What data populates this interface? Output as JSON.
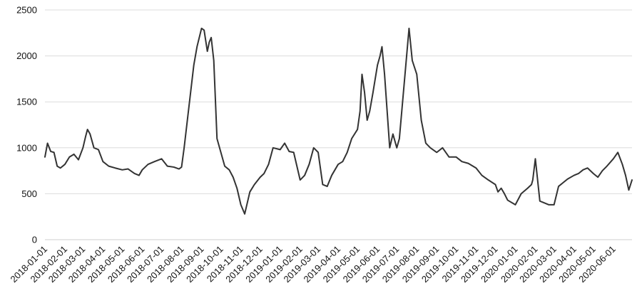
{
  "chart_data": {
    "type": "line",
    "title": "",
    "xlabel": "",
    "ylabel": "",
    "ylim": [
      0,
      2500
    ],
    "yticks": [
      0,
      500,
      1000,
      1500,
      2000,
      2500
    ],
    "ytick_labels": [
      "0",
      "500",
      "1000",
      "1500",
      "2000",
      "2500"
    ],
    "xlim": [
      "2018-01-01",
      "2020-06-30"
    ],
    "xticks": [
      "2018-01-01",
      "2018-02-01",
      "2018-03-01",
      "2018-04-01",
      "2018-05-01",
      "2018-06-01",
      "2018-07-01",
      "2018-08-01",
      "2018-09-01",
      "2018-10-01",
      "2018-11-01",
      "2018-12-01",
      "2019-01-01",
      "2019-02-01",
      "2019-03-01",
      "2019-04-01",
      "2019-05-01",
      "2019-06-01",
      "2019-07-01",
      "2019-08-01",
      "2019-09-01",
      "2019-10-01",
      "2019-11-01",
      "2019-12-01",
      "2020-01-01",
      "2020-02-01",
      "2020-03-01",
      "2020-04-01",
      "2020-05-01",
      "2020-06-01"
    ],
    "grid": {
      "y": true,
      "x": false
    },
    "legend": "none",
    "series": [
      {
        "color": "#333333",
        "x": [
          "2018-01-01",
          "2018-01-05",
          "2018-01-10",
          "2018-01-15",
          "2018-01-20",
          "2018-01-25",
          "2018-02-01",
          "2018-02-08",
          "2018-02-15",
          "2018-02-22",
          "2018-03-01",
          "2018-03-05",
          "2018-03-08",
          "2018-03-12",
          "2018-03-18",
          "2018-03-25",
          "2018-04-01",
          "2018-04-10",
          "2018-04-20",
          "2018-05-01",
          "2018-05-10",
          "2018-05-20",
          "2018-05-27",
          "2018-06-01",
          "2018-06-10",
          "2018-06-20",
          "2018-07-01",
          "2018-07-10",
          "2018-07-20",
          "2018-07-28",
          "2018-08-01",
          "2018-08-05",
          "2018-08-10",
          "2018-08-15",
          "2018-08-20",
          "2018-08-25",
          "2018-09-01",
          "2018-09-05",
          "2018-09-10",
          "2018-09-13",
          "2018-09-16",
          "2018-09-20",
          "2018-09-25",
          "2018-10-01",
          "2018-10-07",
          "2018-10-14",
          "2018-10-20",
          "2018-10-26",
          "2018-11-01",
          "2018-11-07",
          "2018-11-15",
          "2018-11-22",
          "2018-12-01",
          "2018-12-07",
          "2018-12-14",
          "2018-12-21",
          "2019-01-01",
          "2019-01-08",
          "2019-01-15",
          "2019-01-22",
          "2019-02-01",
          "2019-02-08",
          "2019-02-15",
          "2019-02-22",
          "2019-03-01",
          "2019-03-08",
          "2019-03-15",
          "2019-03-22",
          "2019-04-01",
          "2019-04-08",
          "2019-04-15",
          "2019-04-22",
          "2019-05-01",
          "2019-05-05",
          "2019-05-08",
          "2019-05-12",
          "2019-05-16",
          "2019-05-20",
          "2019-05-25",
          "2019-06-01",
          "2019-06-05",
          "2019-06-08",
          "2019-06-12",
          "2019-06-16",
          "2019-06-20",
          "2019-06-25",
          "2019-07-01",
          "2019-07-05",
          "2019-07-10",
          "2019-07-15",
          "2019-07-20",
          "2019-07-25",
          "2019-08-01",
          "2019-08-08",
          "2019-08-15",
          "2019-08-22",
          "2019-09-01",
          "2019-09-10",
          "2019-09-20",
          "2019-10-01",
          "2019-10-10",
          "2019-10-20",
          "2019-11-01",
          "2019-11-10",
          "2019-11-20",
          "2019-12-01",
          "2019-12-05",
          "2019-12-10",
          "2019-12-15",
          "2019-12-20",
          "2020-01-01",
          "2020-01-10",
          "2020-01-20",
          "2020-01-26",
          "2020-01-28",
          "2020-02-01",
          "2020-02-08",
          "2020-02-15",
          "2020-02-22",
          "2020-03-01",
          "2020-03-08",
          "2020-03-15",
          "2020-03-22",
          "2020-04-01",
          "2020-04-08",
          "2020-04-15",
          "2020-04-22",
          "2020-05-01",
          "2020-05-08",
          "2020-05-15",
          "2020-05-22",
          "2020-06-01",
          "2020-06-08",
          "2020-06-15",
          "2020-06-20",
          "2020-06-25",
          "2020-06-30"
        ],
        "values": [
          900,
          1050,
          960,
          950,
          800,
          780,
          820,
          900,
          930,
          870,
          1000,
          1120,
          1200,
          1150,
          1000,
          980,
          850,
          800,
          780,
          760,
          770,
          720,
          700,
          760,
          820,
          850,
          880,
          800,
          790,
          770,
          790,
          1000,
          1300,
          1600,
          1900,
          2100,
          2300,
          2280,
          2050,
          2150,
          2200,
          1950,
          1100,
          950,
          800,
          760,
          680,
          560,
          380,
          280,
          520,
          600,
          680,
          720,
          820,
          1000,
          980,
          1050,
          960,
          950,
          650,
          700,
          820,
          1000,
          950,
          600,
          580,
          700,
          820,
          850,
          950,
          1100,
          1200,
          1400,
          1800,
          1600,
          1300,
          1400,
          1600,
          1900,
          2000,
          2100,
          1800,
          1400,
          1000,
          1150,
          1000,
          1100,
          1500,
          1900,
          2300,
          1950,
          1800,
          1300,
          1050,
          1000,
          950,
          1000,
          900,
          900,
          850,
          830,
          780,
          700,
          650,
          600,
          520,
          560,
          500,
          430,
          380,
          500,
          560,
          600,
          650,
          880,
          420,
          400,
          380,
          380,
          580,
          620,
          660,
          700,
          720,
          760,
          780,
          720,
          680,
          750,
          800,
          880,
          950,
          820,
          700,
          540,
          650
        ]
      }
    ]
  }
}
